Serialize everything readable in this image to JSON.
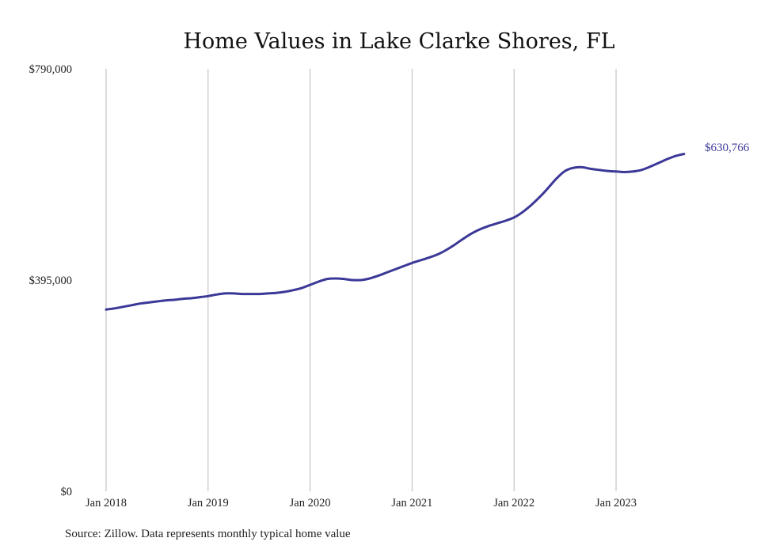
{
  "colors": {
    "line": "#3b3897",
    "grid": "#b9b9b9",
    "text": "#222222"
  },
  "source_note": "Source: Zillow. Data represents monthly typical home value",
  "chart_data": {
    "type": "line",
    "title": "Home Values in Lake Clarke Shores, FL",
    "xlabel": "",
    "ylabel": "",
    "ylim": [
      0,
      790000
    ],
    "y_ticks": [
      {
        "value": 0,
        "label": "$0"
      },
      {
        "value": 395000,
        "label": "$395,000"
      },
      {
        "value": 790000,
        "label": "$790,000"
      }
    ],
    "x_ticks": [
      {
        "value": "2018-01",
        "label": "Jan 2018"
      },
      {
        "value": "2019-01",
        "label": "Jan 2019"
      },
      {
        "value": "2020-01",
        "label": "Jan 2020"
      },
      {
        "value": "2021-01",
        "label": "Jan 2021"
      },
      {
        "value": "2022-01",
        "label": "Jan 2022"
      },
      {
        "value": "2023-01",
        "label": "Jan 2023"
      }
    ],
    "grid": {
      "vertical": true,
      "horizontal": false
    },
    "end_label": "$630,766",
    "series": [
      {
        "x": [
          "2018-01",
          "2018-02",
          "2018-03",
          "2018-04",
          "2018-05",
          "2018-06",
          "2018-07",
          "2018-08",
          "2018-09",
          "2018-10",
          "2018-11",
          "2018-12",
          "2019-01",
          "2019-02",
          "2019-03",
          "2019-04",
          "2019-05",
          "2019-06",
          "2019-07",
          "2019-08",
          "2019-09",
          "2019-10",
          "2019-11",
          "2019-12",
          "2020-01",
          "2020-02",
          "2020-03",
          "2020-04",
          "2020-05",
          "2020-06",
          "2020-07",
          "2020-08",
          "2020-09",
          "2020-10",
          "2020-11",
          "2020-12",
          "2021-01",
          "2021-02",
          "2021-03",
          "2021-04",
          "2021-05",
          "2021-06",
          "2021-07",
          "2021-08",
          "2021-09",
          "2021-10",
          "2021-11",
          "2021-12",
          "2022-01",
          "2022-02",
          "2022-03",
          "2022-04",
          "2022-05",
          "2022-06",
          "2022-07",
          "2022-08",
          "2022-09",
          "2022-10",
          "2022-11",
          "2022-12",
          "2023-01",
          "2023-02",
          "2023-03",
          "2023-04",
          "2023-05",
          "2023-06",
          "2023-07",
          "2023-08",
          "2023-09"
        ],
        "values": [
          340000,
          342000,
          345000,
          348000,
          351000,
          353000,
          355000,
          357000,
          358000,
          360000,
          361000,
          363000,
          365000,
          368000,
          370000,
          370000,
          369000,
          369000,
          369000,
          370000,
          371000,
          373000,
          376000,
          380000,
          386000,
          392000,
          397000,
          398000,
          397000,
          395000,
          395000,
          398000,
          403000,
          409000,
          415000,
          421000,
          427000,
          432000,
          437000,
          443000,
          451000,
          461000,
          472000,
          482000,
          490000,
          496000,
          501000,
          506000,
          512000,
          522000,
          535000,
          550000,
          567000,
          585000,
          599000,
          605000,
          606000,
          603000,
          601000,
          599000,
          598000,
          597000,
          598000,
          601000,
          607000,
          614000,
          621000,
          627000,
          630766
        ]
      }
    ]
  }
}
